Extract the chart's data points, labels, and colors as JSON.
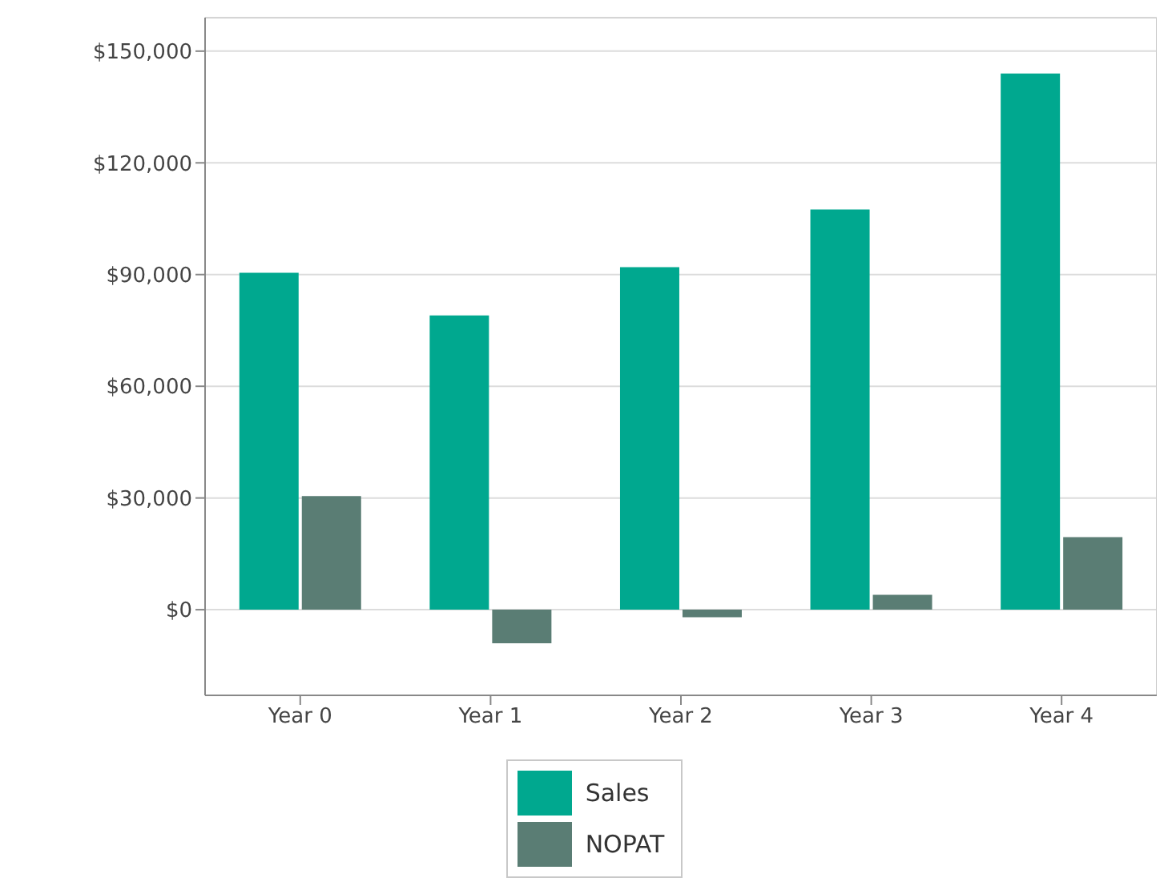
{
  "chart_data": {
    "type": "bar",
    "categories": [
      "Year 0",
      "Year 1",
      "Year 2",
      "Year 3",
      "Year 4"
    ],
    "series": [
      {
        "name": "Sales",
        "color": "#00a88f",
        "values": [
          90500,
          79000,
          92000,
          107500,
          144000
        ]
      },
      {
        "name": "NOPAT",
        "color": "#5a7d74",
        "values": [
          30500,
          -9000,
          -2000,
          4000,
          19500
        ]
      }
    ],
    "ylim": [
      -23000,
      159000
    ],
    "yticks": [
      {
        "value": 0,
        "label": "$0"
      },
      {
        "value": 30000,
        "label": "$30,000"
      },
      {
        "value": 60000,
        "label": "$60,000"
      },
      {
        "value": 90000,
        "label": "$90,000"
      },
      {
        "value": 120000,
        "label": "$120,000"
      },
      {
        "value": 150000,
        "label": "$150,000"
      }
    ],
    "grid": "y",
    "legend": "bottom"
  }
}
